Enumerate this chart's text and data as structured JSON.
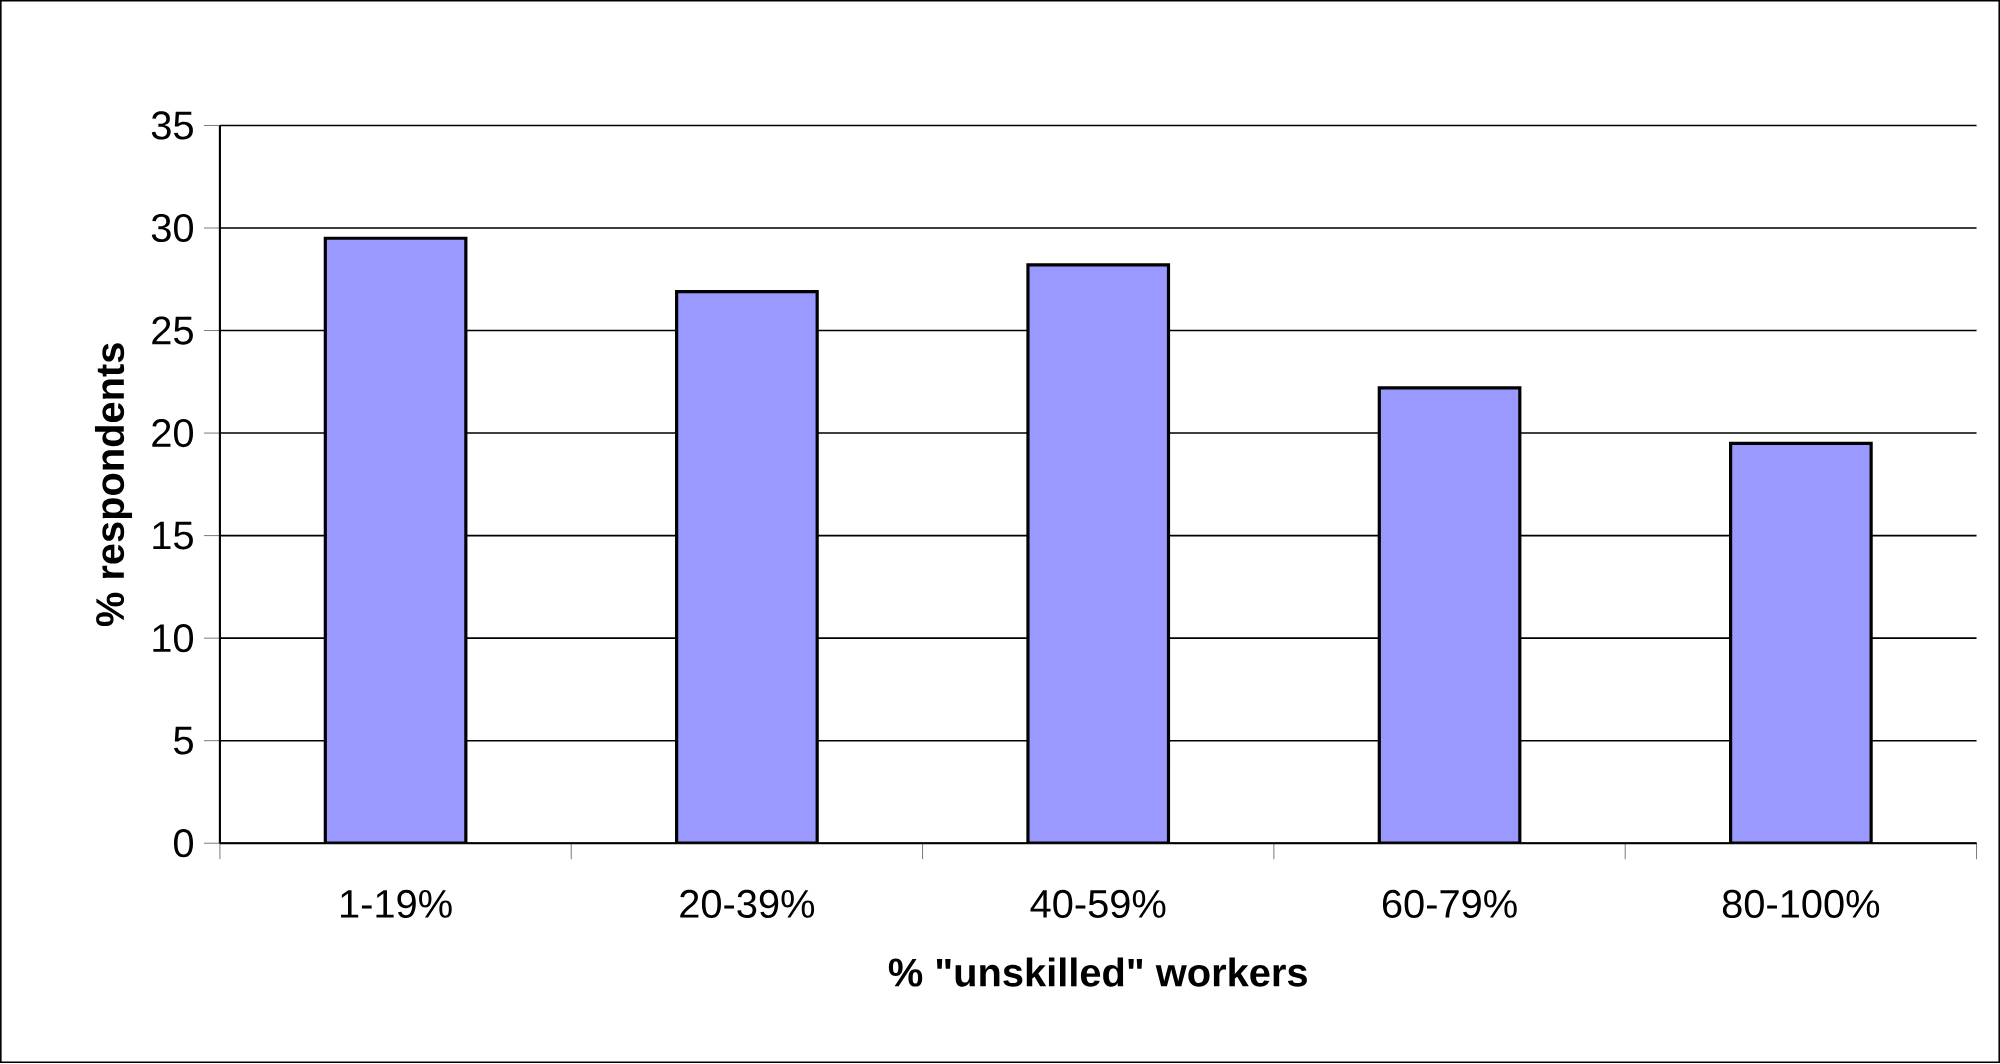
{
  "chart_data": {
    "type": "bar",
    "xlabel": "% \"unskilled\" workers",
    "ylabel": "% respondents",
    "categories": [
      "1-19%",
      "20-39%",
      "40-59%",
      "60-79%",
      "80-100%"
    ],
    "values": [
      29.5,
      26.9,
      28.2,
      22.2,
      19.5
    ],
    "color": "#9999ff",
    "ylim": [
      0,
      35
    ],
    "yticks": [
      0,
      5,
      10,
      15,
      20,
      25,
      30,
      35
    ],
    "grid": "y"
  }
}
